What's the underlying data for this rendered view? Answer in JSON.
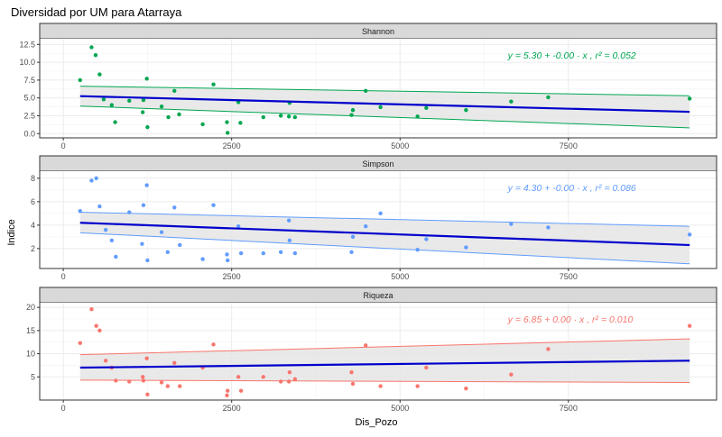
{
  "chart_data": {
    "type": "scatter",
    "title": "Diversidad por UM para Atarraya",
    "xlabel": "Dis_Pozo",
    "ylabel": "Indice",
    "x_ticks": [
      0,
      2500,
      5000,
      7500
    ],
    "xlim": [
      -350,
      9700
    ],
    "grid": true,
    "colors": {
      "trend": "#0000CC",
      "band_fill": "#E5E5E5",
      "strip_fill": "#D9D9D9",
      "grid": "#EBEBEB",
      "border": "#333333"
    },
    "panels": [
      {
        "name": "Shannon",
        "color": "#00A651",
        "ylim": [
          -0.6,
          13.3
        ],
        "y_ticks": [
          0.0,
          2.5,
          5.0,
          7.5,
          10.0,
          12.5
        ],
        "y_tick_labels": [
          "0.0",
          "2.5",
          "5.0",
          "7.5",
          "10.0",
          "12.5"
        ],
        "equation": "y = 5.30 + -0.00 · x ,  r² = 0.052",
        "fit": {
          "x": [
            250,
            9300
          ],
          "y": [
            5.25,
            3.05
          ]
        },
        "band": {
          "x": [
            250,
            9300
          ],
          "upper": [
            6.65,
            5.3
          ],
          "lower": [
            3.85,
            0.8
          ]
        },
        "points": [
          {
            "x": 250,
            "y": 7.5
          },
          {
            "x": 420,
            "y": 12.1
          },
          {
            "x": 480,
            "y": 11.0
          },
          {
            "x": 540,
            "y": 8.3
          },
          {
            "x": 600,
            "y": 4.8
          },
          {
            "x": 720,
            "y": 4.0
          },
          {
            "x": 770,
            "y": 1.6
          },
          {
            "x": 980,
            "y": 4.6
          },
          {
            "x": 1180,
            "y": 3.0
          },
          {
            "x": 1190,
            "y": 4.7
          },
          {
            "x": 1240,
            "y": 7.7
          },
          {
            "x": 1250,
            "y": 0.9
          },
          {
            "x": 1460,
            "y": 3.8
          },
          {
            "x": 1560,
            "y": 2.3
          },
          {
            "x": 1650,
            "y": 6.0
          },
          {
            "x": 1720,
            "y": 2.7
          },
          {
            "x": 2070,
            "y": 1.3
          },
          {
            "x": 2230,
            "y": 6.9
          },
          {
            "x": 2430,
            "y": 1.6
          },
          {
            "x": 2440,
            "y": 0.1
          },
          {
            "x": 2600,
            "y": 4.4
          },
          {
            "x": 2630,
            "y": 1.5
          },
          {
            "x": 2970,
            "y": 2.3
          },
          {
            "x": 3230,
            "y": 2.5
          },
          {
            "x": 3350,
            "y": 2.4
          },
          {
            "x": 3360,
            "y": 4.3
          },
          {
            "x": 3440,
            "y": 2.3
          },
          {
            "x": 4280,
            "y": 2.6
          },
          {
            "x": 4300,
            "y": 3.3
          },
          {
            "x": 4490,
            "y": 6.0
          },
          {
            "x": 4710,
            "y": 3.7
          },
          {
            "x": 5260,
            "y": 2.4
          },
          {
            "x": 5390,
            "y": 3.6
          },
          {
            "x": 5980,
            "y": 3.3
          },
          {
            "x": 6650,
            "y": 4.5
          },
          {
            "x": 7200,
            "y": 5.1
          },
          {
            "x": 9300,
            "y": 4.9
          }
        ]
      },
      {
        "name": "Simpson",
        "color": "#619CFF",
        "ylim": [
          0.3,
          8.6
        ],
        "y_ticks": [
          2,
          4,
          6,
          8
        ],
        "y_tick_labels": [
          "2",
          "4",
          "6",
          "8"
        ],
        "equation": "y = 4.30 + -0.00 · x ,  r² = 0.086",
        "fit": {
          "x": [
            250,
            9300
          ],
          "y": [
            4.2,
            2.3
          ]
        },
        "band": {
          "x": [
            250,
            9300
          ],
          "upper": [
            5.1,
            3.9
          ],
          "lower": [
            3.35,
            0.7
          ]
        },
        "points": [
          {
            "x": 250,
            "y": 5.2
          },
          {
            "x": 420,
            "y": 7.8
          },
          {
            "x": 490,
            "y": 8.0
          },
          {
            "x": 540,
            "y": 5.6
          },
          {
            "x": 630,
            "y": 3.6
          },
          {
            "x": 720,
            "y": 2.7
          },
          {
            "x": 780,
            "y": 1.3
          },
          {
            "x": 980,
            "y": 5.1
          },
          {
            "x": 1170,
            "y": 2.4
          },
          {
            "x": 1190,
            "y": 5.7
          },
          {
            "x": 1240,
            "y": 7.4
          },
          {
            "x": 1250,
            "y": 1.0
          },
          {
            "x": 1460,
            "y": 3.4
          },
          {
            "x": 1550,
            "y": 1.7
          },
          {
            "x": 1650,
            "y": 5.5
          },
          {
            "x": 1730,
            "y": 2.3
          },
          {
            "x": 2070,
            "y": 1.1
          },
          {
            "x": 2230,
            "y": 5.7
          },
          {
            "x": 2430,
            "y": 1.5
          },
          {
            "x": 2440,
            "y": 1.0
          },
          {
            "x": 2600,
            "y": 3.9
          },
          {
            "x": 2640,
            "y": 1.6
          },
          {
            "x": 2970,
            "y": 1.6
          },
          {
            "x": 3230,
            "y": 1.7
          },
          {
            "x": 3350,
            "y": 4.4
          },
          {
            "x": 3360,
            "y": 2.7
          },
          {
            "x": 3440,
            "y": 1.6
          },
          {
            "x": 4280,
            "y": 1.7
          },
          {
            "x": 4300,
            "y": 3.0
          },
          {
            "x": 4490,
            "y": 3.9
          },
          {
            "x": 4710,
            "y": 5.0
          },
          {
            "x": 5260,
            "y": 1.9
          },
          {
            "x": 5390,
            "y": 2.8
          },
          {
            "x": 5980,
            "y": 2.1
          },
          {
            "x": 6650,
            "y": 4.1
          },
          {
            "x": 7200,
            "y": 3.8
          },
          {
            "x": 9300,
            "y": 3.2
          }
        ]
      },
      {
        "name": "Riqueza",
        "color": "#F8766D",
        "ylim": [
          0.0,
          21.0
        ],
        "y_ticks": [
          5,
          10,
          15,
          20
        ],
        "y_tick_labels": [
          "5",
          "10",
          "15",
          "20"
        ],
        "equation": "y = 6.85 + 0.00 · x ,  r² = 0.010",
        "fit": {
          "x": [
            250,
            9300
          ],
          "y": [
            7.0,
            8.5
          ]
        },
        "band": {
          "x": [
            250,
            9300
          ],
          "upper": [
            9.8,
            13.2
          ],
          "lower": [
            4.3,
            3.8
          ]
        },
        "points": [
          {
            "x": 250,
            "y": 12.3
          },
          {
            "x": 420,
            "y": 19.6
          },
          {
            "x": 490,
            "y": 16.0
          },
          {
            "x": 540,
            "y": 15.0
          },
          {
            "x": 630,
            "y": 8.5
          },
          {
            "x": 720,
            "y": 7.0
          },
          {
            "x": 780,
            "y": 4.2
          },
          {
            "x": 980,
            "y": 4.0
          },
          {
            "x": 1180,
            "y": 5.0
          },
          {
            "x": 1190,
            "y": 4.2
          },
          {
            "x": 1240,
            "y": 9.0
          },
          {
            "x": 1250,
            "y": 1.2
          },
          {
            "x": 1460,
            "y": 3.8
          },
          {
            "x": 1550,
            "y": 3.0
          },
          {
            "x": 1650,
            "y": 8.0
          },
          {
            "x": 1730,
            "y": 3.0
          },
          {
            "x": 2070,
            "y": 7.0
          },
          {
            "x": 2230,
            "y": 12.0
          },
          {
            "x": 2430,
            "y": 1.0
          },
          {
            "x": 2440,
            "y": 2.0
          },
          {
            "x": 2600,
            "y": 5.0
          },
          {
            "x": 2640,
            "y": 2.0
          },
          {
            "x": 2970,
            "y": 5.0
          },
          {
            "x": 3230,
            "y": 4.0
          },
          {
            "x": 3350,
            "y": 4.0
          },
          {
            "x": 3360,
            "y": 6.0
          },
          {
            "x": 3440,
            "y": 4.5
          },
          {
            "x": 4280,
            "y": 6.0
          },
          {
            "x": 4300,
            "y": 3.5
          },
          {
            "x": 4490,
            "y": 11.8
          },
          {
            "x": 4710,
            "y": 3.0
          },
          {
            "x": 5260,
            "y": 3.0
          },
          {
            "x": 5390,
            "y": 7.0
          },
          {
            "x": 5980,
            "y": 2.5
          },
          {
            "x": 6650,
            "y": 5.5
          },
          {
            "x": 7200,
            "y": 11.0
          },
          {
            "x": 9300,
            "y": 16.0
          }
        ]
      }
    ]
  }
}
